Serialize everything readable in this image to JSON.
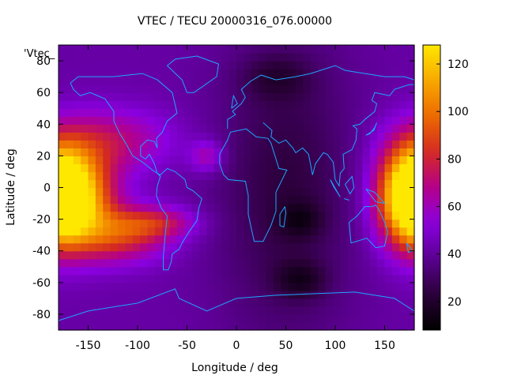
{
  "chart_data": {
    "type": "heatmap",
    "title": "VTEC / TECU 20000316_076.00000",
    "xlabel": "Longitude / deg",
    "ylabel": "Latitude / deg",
    "xlim": [
      -180,
      180
    ],
    "ylim": [
      -90,
      90
    ],
    "xticks": [
      -150,
      -100,
      -50,
      0,
      50,
      100,
      150
    ],
    "yticks": [
      -80,
      -60,
      -40,
      -20,
      0,
      20,
      40,
      60,
      80
    ],
    "key_label": "'Vtec_",
    "colorbar": {
      "range": [
        8,
        128
      ],
      "ticks": [
        20,
        40,
        60,
        80,
        100,
        120
      ],
      "colors": [
        "#000000",
        "#2a0038",
        "#5a0090",
        "#8a00e0",
        "#b4008a",
        "#d42a22",
        "#ec6a00",
        "#f8a800",
        "#ffe800"
      ]
    },
    "overlay": "coastlines",
    "grid": false,
    "field": {
      "lon_step": 7.5,
      "lat_step": 5,
      "lon_start": -180,
      "lat_start": -90,
      "features": [
        {
          "lon": -165,
          "lat": -5,
          "dlon": 28,
          "dlat": 20,
          "amp": 78
        },
        {
          "lon": 175,
          "lat": -5,
          "dlon": 22,
          "dlat": 22,
          "amp": 74
        },
        {
          "lon": -120,
          "lat": -30,
          "dlon": 35,
          "dlat": 12,
          "amp": 40
        },
        {
          "lon": -80,
          "lat": -22,
          "dlon": 28,
          "dlat": 7,
          "amp": 28
        },
        {
          "lon": -130,
          "lat": 30,
          "dlon": 45,
          "dlat": 14,
          "amp": 28
        },
        {
          "lon": -30,
          "lat": 20,
          "dlon": 12,
          "dlat": 7,
          "amp": 22
        },
        {
          "lon": 50,
          "lat": 0,
          "dlon": 50,
          "dlat": 70,
          "amp": -18
        },
        {
          "lon": 65,
          "lat": -58,
          "dlon": 18,
          "dlat": 8,
          "amp": -16
        },
        {
          "lon": 65,
          "lat": -20,
          "dlon": 15,
          "dlat": 8,
          "amp": -14
        },
        {
          "lon": 40,
          "lat": 70,
          "dlon": 25,
          "dlat": 10,
          "amp": -12
        }
      ],
      "base": 42
    }
  }
}
